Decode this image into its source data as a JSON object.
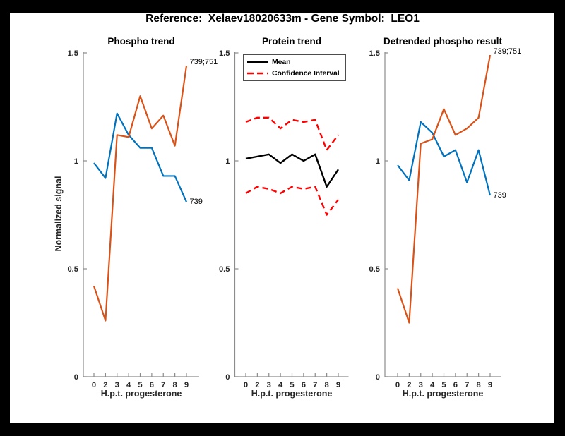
{
  "figure_title": "Reference:  Xelaev18020633m - Gene Symbol:  LEO1",
  "colors": {
    "blue": "#0072BD",
    "orange": "#D95319",
    "mean_black": "#000000",
    "ci_red": "#ff0000",
    "axis": "#8c8c8c",
    "tick_text": "#262626",
    "page_bg": "#000000",
    "figure_bg": "#ffffff",
    "legend_border": "#4d4d4d"
  },
  "chart_data": [
    {
      "type": "line",
      "title": "Phospho trend",
      "xlabel": "H.p.t. progesterone",
      "ylabel": "Normalized signal",
      "categories": [
        "0",
        "2",
        "3",
        "4",
        "5",
        "6",
        "7",
        "8",
        "9"
      ],
      "ylim": [
        0,
        1.5
      ],
      "yticks": [
        "0",
        "0.5",
        "1",
        "1.5"
      ],
      "grid": false,
      "series": [
        {
          "name": "site-739",
          "end_label": "739",
          "color": "#0072BD",
          "style": "solid",
          "values": [
            0.99,
            0.92,
            1.22,
            1.12,
            1.06,
            1.06,
            0.93,
            0.93,
            0.81
          ]
        },
        {
          "name": "site-739-751",
          "end_label": "739;751",
          "color": "#D95319",
          "style": "solid",
          "values": [
            0.42,
            0.26,
            1.12,
            1.11,
            1.3,
            1.15,
            1.21,
            1.07,
            1.44
          ]
        }
      ]
    },
    {
      "type": "line",
      "title": "Protein trend",
      "xlabel": "H.p.t. progesterone",
      "ylabel": "",
      "categories": [
        "0",
        "2",
        "3",
        "4",
        "5",
        "6",
        "7",
        "8",
        "9"
      ],
      "ylim": [
        0,
        1.5
      ],
      "yticks": [
        "0",
        "0.5",
        "1",
        "1.5"
      ],
      "grid": false,
      "legend": {
        "position": "northwest",
        "entries": [
          {
            "label": "Mean",
            "color": "#000000",
            "style": "solid"
          },
          {
            "label": "Confidence Interval",
            "color": "#ff0000",
            "style": "dashed"
          }
        ]
      },
      "series": [
        {
          "name": "mean",
          "color": "#000000",
          "style": "solid",
          "values": [
            1.01,
            1.02,
            1.03,
            0.99,
            1.03,
            1.0,
            1.03,
            0.88,
            0.96
          ]
        },
        {
          "name": "ci-upper",
          "color": "#ff0000",
          "style": "dashed",
          "values": [
            1.18,
            1.2,
            1.2,
            1.15,
            1.19,
            1.18,
            1.19,
            1.05,
            1.12
          ]
        },
        {
          "name": "ci-lower",
          "color": "#ff0000",
          "style": "dashed",
          "values": [
            0.85,
            0.88,
            0.87,
            0.85,
            0.88,
            0.87,
            0.88,
            0.75,
            0.82
          ]
        }
      ]
    },
    {
      "type": "line",
      "title": "Detrended phospho result",
      "xlabel": "H.p.t. progesterone",
      "ylabel": "",
      "categories": [
        "0",
        "2",
        "3",
        "4",
        "5",
        "6",
        "7",
        "8",
        "9"
      ],
      "ylim": [
        0,
        1.5
      ],
      "yticks": [
        "0",
        "0.5",
        "1",
        "1.5"
      ],
      "grid": false,
      "series": [
        {
          "name": "site-739",
          "end_label": "739",
          "color": "#0072BD",
          "style": "solid",
          "values": [
            0.98,
            0.91,
            1.18,
            1.13,
            1.02,
            1.05,
            0.9,
            1.05,
            0.84
          ]
        },
        {
          "name": "site-739-751",
          "end_label": "739;751",
          "color": "#D95319",
          "style": "solid",
          "values": [
            0.41,
            0.25,
            1.08,
            1.1,
            1.24,
            1.12,
            1.15,
            1.2,
            1.49
          ]
        }
      ]
    }
  ]
}
